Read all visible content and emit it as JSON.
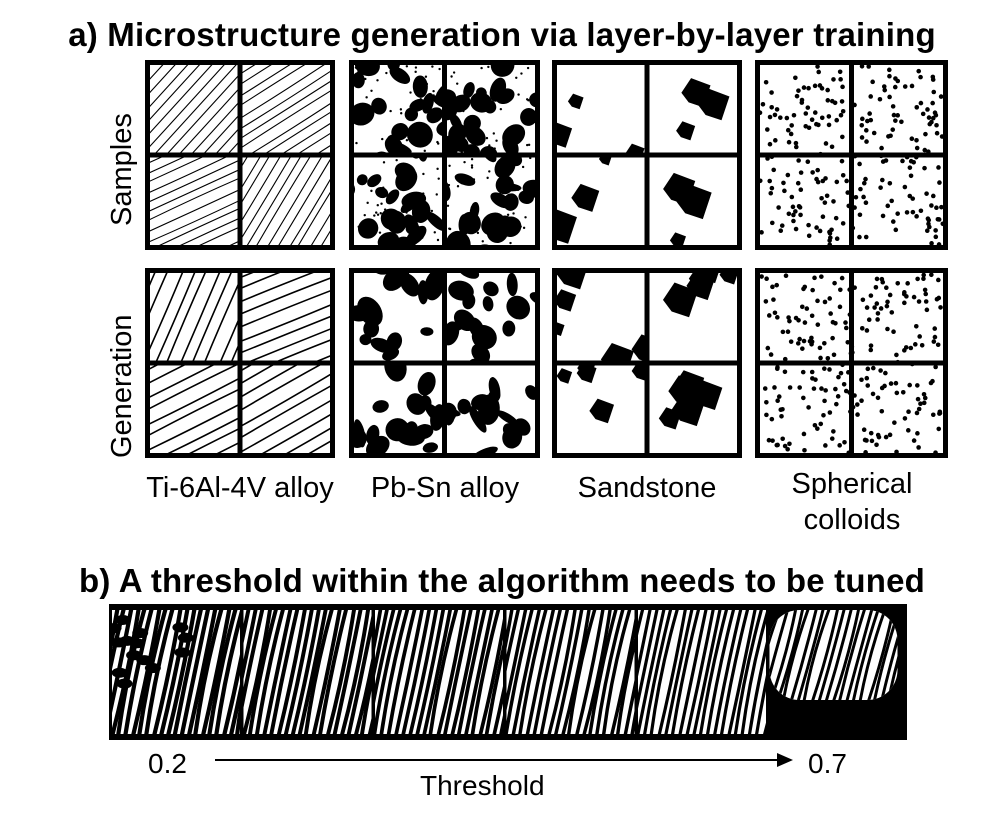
{
  "section_a": {
    "title": "a) Microstructure generation via layer-by-layer training",
    "row_labels": [
      "Samples",
      "Generation"
    ],
    "materials": [
      {
        "name": "Ti-6Al-4V alloy",
        "pattern": "lamellar-lines"
      },
      {
        "name": "Pb-Sn alloy",
        "pattern": "blob-network"
      },
      {
        "name": "Sandstone",
        "pattern": "sparse-blobs"
      },
      {
        "name": "Spherical colloids",
        "name_lines": [
          "Spherical",
          "colloids"
        ],
        "pattern": "dots"
      }
    ]
  },
  "section_b": {
    "title": "b) A threshold within the algorithm needs to be tuned",
    "frame_count": 6,
    "start_value": "0.2",
    "end_value": "0.7",
    "axis_label": "Threshold"
  },
  "colors": {
    "ink": "#000000",
    "paper": "#ffffff"
  }
}
